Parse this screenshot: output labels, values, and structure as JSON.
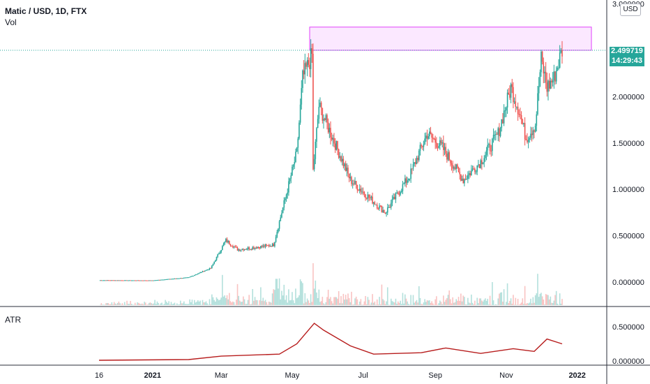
{
  "header": {
    "title": "Matic / USD, 1D, FTX",
    "volume_label": "Vol",
    "indicator_label": "ATR"
  },
  "price_axis": {
    "ticks": [
      "0.000000",
      "0.500000",
      "1.000000",
      "1.500000",
      "2.000000",
      "2.499719",
      "3.000000"
    ],
    "tick_values": [
      0,
      0.5,
      1.0,
      1.5,
      2.0,
      2.499719,
      3.0
    ],
    "currency_button": "USD",
    "last_price": "2.499719",
    "countdown": "14:29:43",
    "colors": {
      "up": "#26a69a",
      "down": "#ef5350",
      "badge": "#26a69a"
    }
  },
  "atr_axis": {
    "ticks": [
      "0.000000",
      "0.500000"
    ],
    "tick_values": [
      0,
      0.5
    ]
  },
  "time_axis": {
    "ticks": [
      "16",
      "2021",
      "Mar",
      "May",
      "Jul",
      "Sep",
      "Nov",
      "2022"
    ]
  },
  "chart_data": [
    {
      "type": "candlestick",
      "title": "Matic / USD, 1D, FTX",
      "x_range": [
        "2020-11-16",
        "2021-12-19"
      ],
      "ylim": [
        0,
        3.0
      ],
      "resistance_zone": {
        "y_from": 2.5,
        "y_to": 2.75,
        "color": "#e040fb"
      },
      "key_points": [
        {
          "date": "2020-11-16",
          "close": 0.02
        },
        {
          "date": "2021-01-01",
          "close": 0.018
        },
        {
          "date": "2021-02-01",
          "close": 0.05
        },
        {
          "date": "2021-02-20",
          "close": 0.15
        },
        {
          "date": "2021-03-05",
          "close": 0.45
        },
        {
          "date": "2021-03-15",
          "close": 0.35
        },
        {
          "date": "2021-04-15",
          "close": 0.4
        },
        {
          "date": "2021-04-25",
          "close": 0.9
        },
        {
          "date": "2021-05-05",
          "close": 1.4
        },
        {
          "date": "2021-05-10",
          "close": 2.2
        },
        {
          "date": "2021-05-18",
          "close": 2.45
        },
        {
          "date": "2021-05-19",
          "close": 1.2
        },
        {
          "date": "2021-05-24",
          "close": 1.9
        },
        {
          "date": "2021-06-05",
          "close": 1.55
        },
        {
          "date": "2021-06-20",
          "close": 1.1
        },
        {
          "date": "2021-07-20",
          "close": 0.75
        },
        {
          "date": "2021-08-10",
          "close": 1.15
        },
        {
          "date": "2021-08-25",
          "close": 1.6
        },
        {
          "date": "2021-09-07",
          "close": 1.45
        },
        {
          "date": "2021-09-25",
          "close": 1.1
        },
        {
          "date": "2021-10-10",
          "close": 1.3
        },
        {
          "date": "2021-10-25",
          "close": 1.6
        },
        {
          "date": "2021-11-05",
          "close": 2.1
        },
        {
          "date": "2021-11-12",
          "close": 1.85
        },
        {
          "date": "2021-11-18",
          "close": 1.55
        },
        {
          "date": "2021-11-26",
          "close": 1.7
        },
        {
          "date": "2021-12-01",
          "close": 2.4
        },
        {
          "date": "2021-12-06",
          "close": 2.1
        },
        {
          "date": "2021-12-12",
          "close": 2.2
        },
        {
          "date": "2021-12-19",
          "close": 2.5
        }
      ]
    },
    {
      "type": "line",
      "title": "ATR",
      "ylim": [
        0,
        0.5
      ],
      "color": "#b71c1c",
      "series": [
        {
          "date": "2020-11-16",
          "value": 0.01
        },
        {
          "date": "2021-02-01",
          "value": 0.02
        },
        {
          "date": "2021-03-01",
          "value": 0.07
        },
        {
          "date": "2021-04-20",
          "value": 0.1
        },
        {
          "date": "2021-05-05",
          "value": 0.25
        },
        {
          "date": "2021-05-20",
          "value": 0.55
        },
        {
          "date": "2021-05-28",
          "value": 0.45
        },
        {
          "date": "2021-06-20",
          "value": 0.22
        },
        {
          "date": "2021-07-10",
          "value": 0.1
        },
        {
          "date": "2021-08-20",
          "value": 0.12
        },
        {
          "date": "2021-09-10",
          "value": 0.19
        },
        {
          "date": "2021-10-10",
          "value": 0.11
        },
        {
          "date": "2021-11-07",
          "value": 0.18
        },
        {
          "date": "2021-11-25",
          "value": 0.14
        },
        {
          "date": "2021-12-06",
          "value": 0.32
        },
        {
          "date": "2021-12-19",
          "value": 0.25
        }
      ]
    }
  ]
}
